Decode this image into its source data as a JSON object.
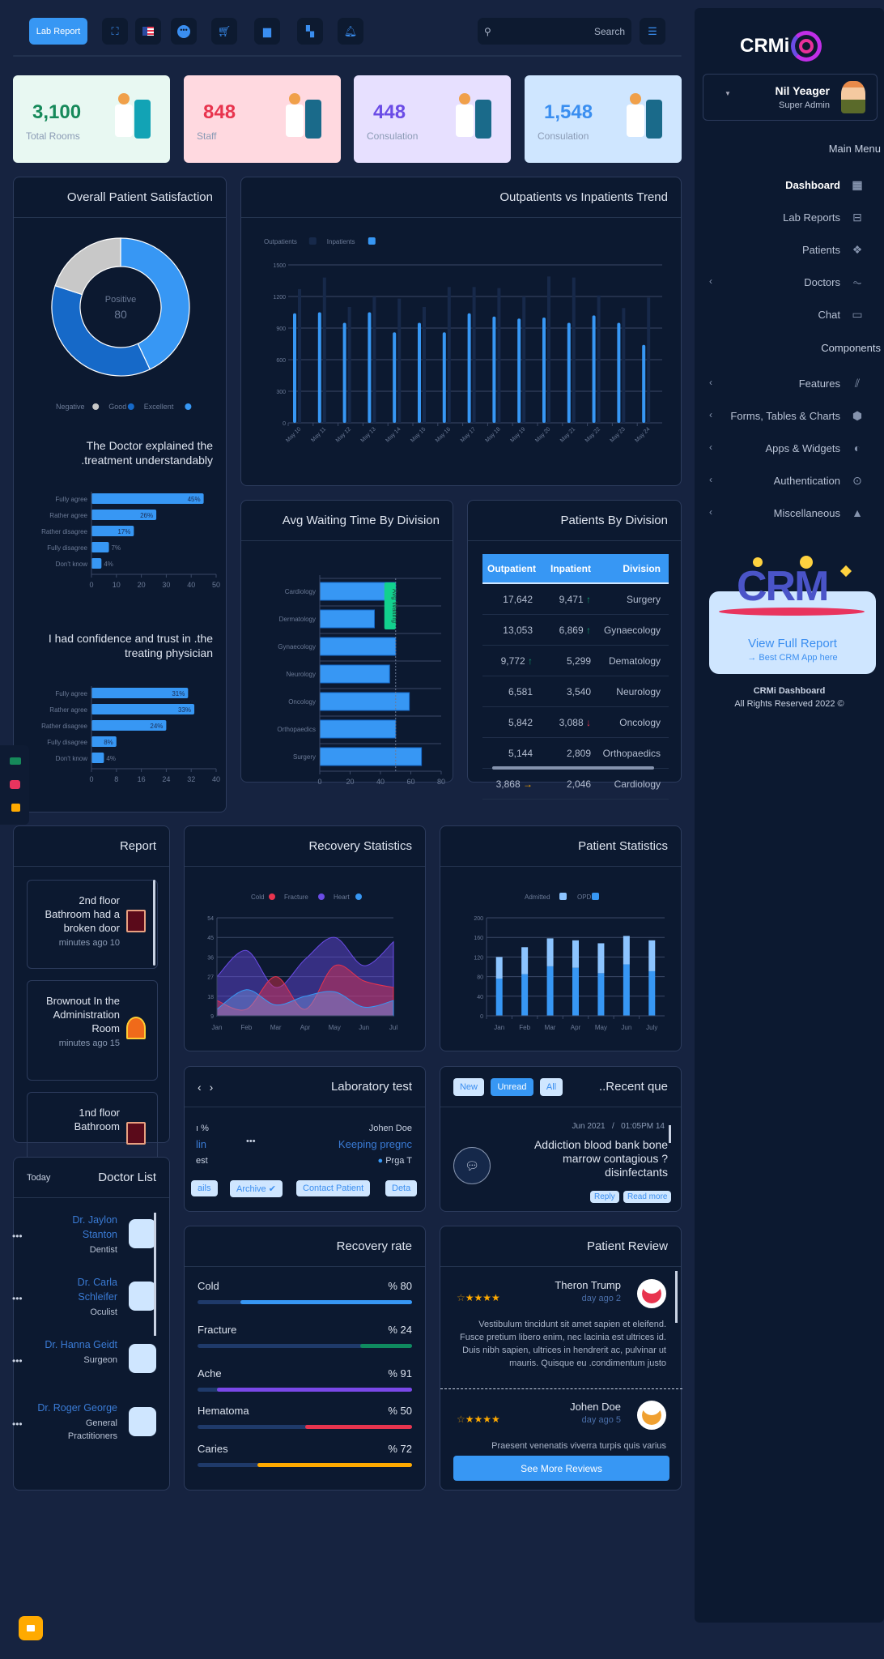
{
  "topbar": {
    "lab_report": "Lab Report",
    "search_placeholder": "Search",
    "icons": [
      "fullscreen-icon",
      "us-flag-icon",
      "chat-bubble-icon",
      "cart-icon",
      "file-icon",
      "grid-icon",
      "bell-icon"
    ]
  },
  "stats": [
    {
      "value": "3,100",
      "label": "Total Rooms",
      "color": "#16895a",
      "bg": "#e8f8f2"
    },
    {
      "value": "848",
      "label": "Staff",
      "color": "#e8344e",
      "bg": "#ffd9e0"
    },
    {
      "value": "448",
      "label": "Consulation",
      "color": "#6b4ce6",
      "bg": "#e7e0ff"
    },
    {
      "value": "1,548",
      "label": "Consulation",
      "color": "#3a8ef0",
      "bg": "#cfe6ff"
    }
  ],
  "sidebar": {
    "logo": "CRMi",
    "user_name": "Nil Yeager",
    "user_role": "Super Admin",
    "main_menu": "Main Menu",
    "items": [
      {
        "label": "Dashboard",
        "icon": "dashboard-icon",
        "active": true,
        "chevron": false
      },
      {
        "label": "Lab Reports",
        "icon": "toggle-icon",
        "chevron": false
      },
      {
        "label": "Patients",
        "icon": "diamonds-icon",
        "chevron": false
      },
      {
        "label": "Doctors",
        "icon": "pulse-icon",
        "chevron": true
      },
      {
        "label": "Chat",
        "icon": "chat-icon",
        "chevron": false
      }
    ],
    "components": "Components",
    "items2": [
      {
        "label": "Features",
        "icon": "library-icon",
        "chevron": true
      },
      {
        "label": "Forms, Tables & Charts",
        "icon": "cube-icon",
        "chevron": true
      },
      {
        "label": "Apps & Widgets",
        "icon": "globe-icon",
        "chevron": true
      },
      {
        "label": "Authentication",
        "icon": "lock-icon",
        "chevron": true
      },
      {
        "label": "Miscellaneous",
        "icon": "warning-icon",
        "chevron": true
      }
    ],
    "promo_title": "View Full Report",
    "promo_link": "→ Best CRM App here",
    "promo_art": "CRM",
    "footer_title": "CRMi Dashboard",
    "footer_copy": "All Rights Reserved 2022 ©"
  },
  "satisfaction": {
    "title": "Overall Patient Satisfaction",
    "center_label": "Positive",
    "center_value": "80",
    "q1": "The Doctor explained the .treatment understandably",
    "q2": "I had confidence and trust in .the treating physician"
  },
  "chart_data": [
    {
      "id": "satisfaction-donut",
      "type": "pie",
      "categories": [
        "Excellent",
        "Good",
        "Negative"
      ],
      "values": [
        43,
        37,
        20
      ],
      "colors": [
        "#3797f4",
        "#1669c8",
        "#c8c8c8"
      ],
      "legend": [
        "Negative",
        "Good",
        "Excellent"
      ],
      "legend_placement": "bottom"
    },
    {
      "id": "doctor-explained",
      "type": "bar",
      "orientation": "horizontal",
      "categories": [
        "Fully agree",
        "Rather agree",
        "Rather disagree",
        "Fully disagree",
        "Don't know"
      ],
      "values": [
        45,
        26,
        17,
        7,
        4
      ],
      "data_labels": [
        "45%",
        "26%",
        "17%",
        "7%",
        "4%"
      ],
      "xlim": [
        0,
        50
      ],
      "xticks": [
        0,
        10,
        20,
        30,
        40,
        50
      ]
    },
    {
      "id": "confidence-trust",
      "type": "bar",
      "orientation": "horizontal",
      "categories": [
        "Fully agree",
        "Rather agree",
        "Rather disagree",
        "Fully disagree",
        "Don't know"
      ],
      "values": [
        31,
        33,
        24,
        8,
        4
      ],
      "data_labels": [
        "31%",
        "33%",
        "24%",
        "8%",
        "4%"
      ],
      "xlim": [
        0,
        40
      ],
      "xticks": [
        0,
        8,
        16,
        24,
        32,
        40
      ]
    },
    {
      "id": "trend",
      "type": "bar",
      "title": "Outpatients vs Inpatients Trend",
      "categories": [
        "May 10",
        "May 11",
        "May 12",
        "May 13",
        "May 14",
        "May 15",
        "May 16",
        "May 17",
        "May 18",
        "May 19",
        "May 20",
        "May 21",
        "May 22",
        "May 23",
        "May 24"
      ],
      "series": [
        {
          "name": "Outpatients",
          "color": "#17294a",
          "values": [
            1270,
            1380,
            1100,
            1200,
            1180,
            1100,
            1290,
            1290,
            1280,
            1200,
            1390,
            1380,
            1210,
            1090,
            1190
          ]
        },
        {
          "name": "Inpatients",
          "color": "#3797f4",
          "values": [
            1040,
            1050,
            950,
            1050,
            860,
            950,
            860,
            1040,
            1010,
            990,
            1000,
            950,
            1020,
            950,
            740
          ]
        }
      ],
      "ylim": [
        0,
        1500
      ],
      "yticks": [
        0,
        300,
        600,
        900,
        1200,
        1500
      ],
      "grid": true,
      "legend_placement": "top-left"
    },
    {
      "id": "avg-waiting",
      "type": "bar",
      "orientation": "horizontal",
      "title": "Avg Waiting Time By Division",
      "categories": [
        "Cardiology",
        "Dermatology",
        "Gynaecology",
        "Neurology",
        "Oncology",
        "Orthopaedics",
        "Surgery"
      ],
      "values": [
        50,
        36,
        50,
        46,
        59,
        50,
        67
      ],
      "xlim": [
        0,
        80
      ],
      "xticks": [
        0,
        20,
        40,
        60,
        80
      ],
      "reference_line": {
        "value": 50,
        "label": "Avg Waiting",
        "color": "#12d18e"
      }
    },
    {
      "id": "recovery-stats",
      "type": "area",
      "title": "Recovery Statistics",
      "categories": [
        "Jan",
        "Feb",
        "Mar",
        "Apr",
        "May",
        "Jun",
        "Jul"
      ],
      "series": [
        {
          "name": "Cold",
          "color": "#e8344e",
          "values": [
            16,
            12,
            27,
            12,
            32,
            25,
            22
          ]
        },
        {
          "name": "Fracture",
          "color": "#6b4ce6",
          "values": [
            27,
            39,
            22,
            35,
            45,
            32,
            43
          ]
        },
        {
          "name": "Heart",
          "color": "#3797f4",
          "values": [
            12,
            21,
            14,
            18,
            20,
            13,
            16
          ]
        }
      ],
      "ylim": [
        9,
        54
      ],
      "yticks": [
        9,
        18,
        27,
        36,
        45,
        54
      ],
      "grid": true,
      "legend_placement": "top"
    },
    {
      "id": "patient-stats",
      "type": "bar",
      "stacked": true,
      "title": "Patient Statistics",
      "categories": [
        "Jan",
        "Feb",
        "Mar",
        "Apr",
        "May",
        "Jun",
        "July"
      ],
      "series": [
        {
          "name": "OPD",
          "color": "#3797f4",
          "values": [
            76,
            85,
            101,
            98,
            87,
            105,
            91
          ]
        },
        {
          "name": "Admitted",
          "color": "#8cc4ff",
          "values": [
            44,
            55,
            57,
            56,
            61,
            58,
            63
          ]
        }
      ],
      "legend": [
        "Admitted",
        "OPD"
      ],
      "ylim": [
        0,
        200
      ],
      "yticks": [
        0,
        40,
        80,
        120,
        160,
        200
      ],
      "grid": true,
      "legend_placement": "top"
    }
  ],
  "trend": {
    "title": "Outpatients vs Inpatients Trend"
  },
  "waiting": {
    "title": "Avg Waiting Time By Division"
  },
  "division": {
    "title": "Patients By Division",
    "headers": [
      "Outpatient",
      "Inpatient",
      "Division"
    ],
    "rows": [
      {
        "out": "17,642",
        "out_trend": "",
        "in": "9,471",
        "in_trend": "up",
        "div": "Surgery"
      },
      {
        "out": "13,053",
        "out_trend": "",
        "in": "6,869",
        "in_trend": "up",
        "div": "Gynaecology"
      },
      {
        "out": "9,772",
        "out_trend": "up",
        "in": "5,299",
        "in_trend": "",
        "div": "Dematology"
      },
      {
        "out": "6,581",
        "out_trend": "",
        "in": "3,540",
        "in_trend": "",
        "div": "Neurology"
      },
      {
        "out": "5,842",
        "out_trend": "",
        "in": "3,088",
        "in_trend": "down",
        "div": "Oncology"
      },
      {
        "out": "5,144",
        "out_trend": "",
        "in": "2,809",
        "in_trend": "",
        "div": "Orthopaedics"
      },
      {
        "out": "3,868",
        "out_trend": "right",
        "in": "2,046",
        "in_trend": "",
        "div": "Cardiology"
      }
    ]
  },
  "report": {
    "title": "Report",
    "items": [
      {
        "text": "2nd floor Bathroom had a broken door",
        "time": "minutes ago 10",
        "icon": "door-icon"
      },
      {
        "text": "Brownout In the Administration Room",
        "time": "minutes ago 15",
        "icon": "alarm-icon"
      },
      {
        "text": "1nd floor Bathroom",
        "time": "",
        "icon": "door-icon"
      }
    ]
  },
  "recovery_stats": {
    "title": "Recovery Statistics"
  },
  "patient_stats": {
    "title": "Patient Statistics"
  },
  "lab": {
    "title": "Laboratory test",
    "left_partial_title": "lin",
    "left_partial_sub": "est",
    "patient": "Johen Doe",
    "test_title": "Keeping pregnc",
    "test_tag": "Prga T",
    "buttons": [
      "ails",
      "Archive ✔",
      "Contact Patient",
      "Deta"
    ]
  },
  "queries": {
    "title": "..Recent que",
    "tabs": [
      "New",
      "Unread",
      "All"
    ],
    "date": "Jun 2021",
    "time": "01:05PM 14",
    "question": "Addiction blood bank bone marrow contagious ?disinfectants",
    "reply": "Reply",
    "read_more": "Read more"
  },
  "doctors": {
    "title": "Doctor List",
    "filter": "Today",
    "items": [
      {
        "name": "Dr. Jaylon Stanton",
        "spec": "Dentist"
      },
      {
        "name": "Dr. Carla Schleifer",
        "spec": "Oculist"
      },
      {
        "name": "Dr. Hanna Geidt",
        "spec": "Surgeon"
      },
      {
        "name": "Dr. Roger George",
        "spec": "General Practitioners"
      }
    ]
  },
  "recovery_rate": {
    "title": "Recovery rate",
    "items": [
      {
        "label": "Cold",
        "value": 80,
        "text": "% 80",
        "color": "#3797f4"
      },
      {
        "label": "Fracture",
        "value": 24,
        "text": "% 24",
        "color": "#0f8a5f"
      },
      {
        "label": "Ache",
        "value": 91,
        "text": "% 91",
        "color": "#7a48e8"
      },
      {
        "label": "Hematoma",
        "value": 50,
        "text": "% 50",
        "color": "#e8344e"
      },
      {
        "label": "Caries",
        "value": 72,
        "text": "% 72",
        "color": "#ffaa00"
      }
    ]
  },
  "reviews": {
    "title": "Patient Review",
    "button": "See More Reviews",
    "items": [
      {
        "name": "Theron Trump",
        "time": "day ago 2",
        "rating": 4,
        "text": "Vestibulum tincidunt sit amet sapien et eleifend. Fusce pretium libero enim, nec lacinia est ultrices id. Duis nibh sapien, ultrices in hendrerit ac, pulvinar ut mauris. Quisque eu .condimentum justo"
      },
      {
        "name": "Johen Doe",
        "time": "day ago 5",
        "rating": 4.5,
        "text": "Praesent venenatis viverra turpis quis varius"
      }
    ]
  }
}
